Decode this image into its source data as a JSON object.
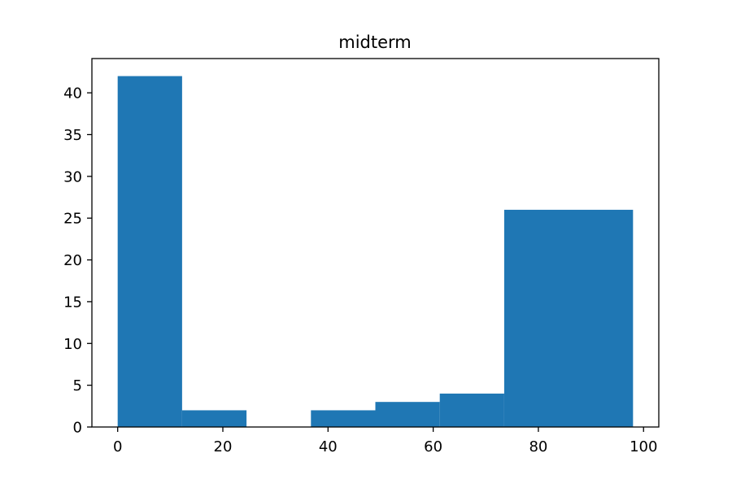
{
  "chart_data": {
    "type": "bar",
    "title": "midterm",
    "xlabel": "",
    "ylabel": "",
    "xlim": [
      -4.9,
      102.9
    ],
    "ylim": [
      0,
      44.1
    ],
    "xticks": [
      0,
      20,
      40,
      60,
      80,
      100
    ],
    "yticks": [
      0,
      5,
      10,
      15,
      20,
      25,
      30,
      35,
      40
    ],
    "grid": false,
    "bar_color": "#1f77b4",
    "bins": [
      {
        "x0": 0,
        "x1": 12.25,
        "value": 42
      },
      {
        "x0": 12.25,
        "x1": 24.5,
        "value": 2
      },
      {
        "x0": 24.5,
        "x1": 36.75,
        "value": 0
      },
      {
        "x0": 36.75,
        "x1": 49,
        "value": 2
      },
      {
        "x0": 49,
        "x1": 61.25,
        "value": 3
      },
      {
        "x0": 61.25,
        "x1": 73.5,
        "value": 4
      },
      {
        "x0": 73.5,
        "x1": 98,
        "value": 26
      }
    ]
  }
}
